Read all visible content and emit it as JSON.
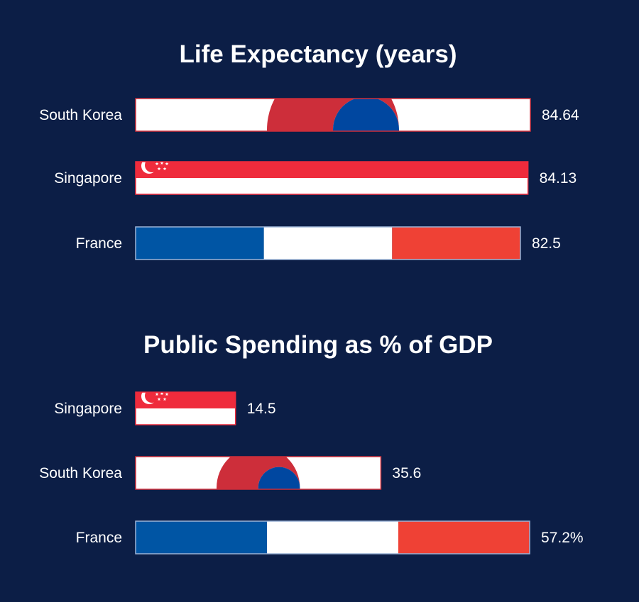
{
  "colors": {
    "background": "#0c1e46",
    "korea_red": "#cd2e3a",
    "korea_blue": "#0047a0",
    "singapore_red": "#ef2b3c",
    "france_blue": "#0055a4",
    "france_red": "#ef4135",
    "white": "#ffffff"
  },
  "chart_data": [
    {
      "type": "bar",
      "orientation": "horizontal",
      "title": "Life Expectancy (years)",
      "xlim": [
        0,
        84.64
      ],
      "categories": [
        "South Korea",
        "Singapore",
        "France"
      ],
      "values": [
        84.64,
        84.13,
        82.5
      ],
      "value_labels": [
        "84.64",
        "84.13",
        "82.5"
      ],
      "bar_fill": [
        "flag-south-korea",
        "flag-singapore",
        "flag-france"
      ]
    },
    {
      "type": "bar",
      "orientation": "horizontal",
      "title": "Public Spending as % of GDP",
      "xlim": [
        0,
        57.2
      ],
      "categories": [
        "Singapore",
        "South Korea",
        "France"
      ],
      "values": [
        14.5,
        35.6,
        57.2
      ],
      "value_labels": [
        "14.5",
        "35.6",
        "57.2%"
      ],
      "bar_fill": [
        "flag-singapore",
        "flag-south-korea",
        "flag-france"
      ]
    }
  ]
}
